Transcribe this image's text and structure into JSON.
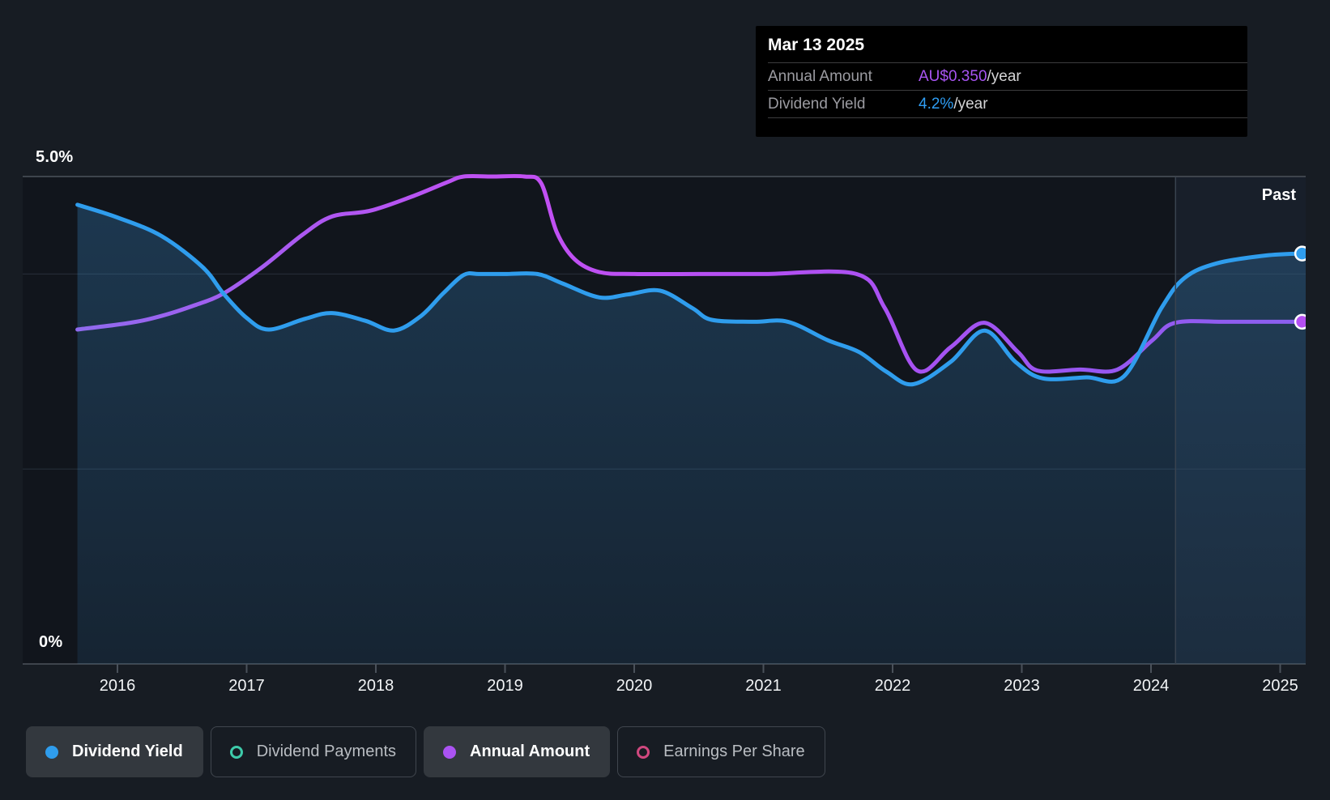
{
  "tooltip": {
    "date": "Mar 13 2025",
    "rows": [
      {
        "label": "Annual Amount",
        "value": "AU$0.350",
        "suffix": "/year",
        "value_color": "#a855f2"
      },
      {
        "label": "Dividend Yield",
        "value": "4.2%",
        "suffix": "/year",
        "value_color": "#2f9df3"
      }
    ]
  },
  "chart": {
    "past_label": "Past",
    "y_axis": {
      "top_label": "5.0%",
      "bottom_label": "0%"
    },
    "x_labels": [
      "2016",
      "2017",
      "2018",
      "2019",
      "2020",
      "2021",
      "2022",
      "2023",
      "2024",
      "2025"
    ]
  },
  "chart_data": {
    "type": "line",
    "title": "Dividend history chart",
    "y_unit": "%",
    "ylim": [
      0,
      5
    ],
    "xlim_years": [
      2015.69,
      2025.2
    ],
    "gridlines_pct": [
      5,
      4,
      2,
      0
    ],
    "past_region_start_year": 2024.19,
    "grid_on": true,
    "series": [
      {
        "name": "Dividend Yield",
        "color": "#2f9ded",
        "fill_area": true,
        "end_dot": true,
        "points": [
          [
            2015.69,
            4.71
          ],
          [
            2016.0,
            4.58
          ],
          [
            2016.34,
            4.39
          ],
          [
            2016.66,
            4.07
          ],
          [
            2016.82,
            3.8
          ],
          [
            2017.0,
            3.55
          ],
          [
            2017.17,
            3.43
          ],
          [
            2017.45,
            3.54
          ],
          [
            2017.66,
            3.6
          ],
          [
            2017.92,
            3.52
          ],
          [
            2018.14,
            3.42
          ],
          [
            2018.35,
            3.57
          ],
          [
            2018.52,
            3.8
          ],
          [
            2018.68,
            3.99
          ],
          [
            2018.8,
            4.0
          ],
          [
            2019.0,
            4.0
          ],
          [
            2019.25,
            4.0
          ],
          [
            2019.45,
            3.9
          ],
          [
            2019.73,
            3.76
          ],
          [
            2019.95,
            3.79
          ],
          [
            2020.2,
            3.83
          ],
          [
            2020.45,
            3.65
          ],
          [
            2020.6,
            3.53
          ],
          [
            2020.92,
            3.51
          ],
          [
            2021.19,
            3.51
          ],
          [
            2021.5,
            3.32
          ],
          [
            2021.74,
            3.2
          ],
          [
            2021.95,
            3.0
          ],
          [
            2022.16,
            2.87
          ],
          [
            2022.45,
            3.1
          ],
          [
            2022.71,
            3.42
          ],
          [
            2022.95,
            3.1
          ],
          [
            2023.16,
            2.93
          ],
          [
            2023.5,
            2.94
          ],
          [
            2023.79,
            2.95
          ],
          [
            2024.08,
            3.65
          ],
          [
            2024.26,
            3.96
          ],
          [
            2024.51,
            4.11
          ],
          [
            2024.89,
            4.19
          ],
          [
            2025.17,
            4.21
          ]
        ]
      },
      {
        "name": "Annual Amount",
        "color": "#b44ff2",
        "fill_area": false,
        "end_dot": true,
        "points": [
          [
            2015.69,
            3.43
          ],
          [
            2016.1,
            3.5
          ],
          [
            2016.34,
            3.57
          ],
          [
            2016.6,
            3.68
          ],
          [
            2016.82,
            3.8
          ],
          [
            2017.12,
            4.07
          ],
          [
            2017.43,
            4.4
          ],
          [
            2017.66,
            4.59
          ],
          [
            2017.96,
            4.65
          ],
          [
            2018.29,
            4.8
          ],
          [
            2018.55,
            4.94
          ],
          [
            2018.68,
            5.0
          ],
          [
            2018.9,
            5.0
          ],
          [
            2019.15,
            5.0
          ],
          [
            2019.28,
            4.93
          ],
          [
            2019.4,
            4.43
          ],
          [
            2019.54,
            4.15
          ],
          [
            2019.73,
            4.02
          ],
          [
            2020.0,
            4.0
          ],
          [
            2020.5,
            4.0
          ],
          [
            2021.0,
            4.0
          ],
          [
            2021.72,
            4.0
          ],
          [
            2021.94,
            3.65
          ],
          [
            2022.19,
            3.01
          ],
          [
            2022.45,
            3.25
          ],
          [
            2022.71,
            3.5
          ],
          [
            2022.97,
            3.2
          ],
          [
            2023.12,
            3.01
          ],
          [
            2023.45,
            3.02
          ],
          [
            2023.74,
            3.02
          ],
          [
            2024.01,
            3.32
          ],
          [
            2024.19,
            3.5
          ],
          [
            2024.6,
            3.51
          ],
          [
            2025.17,
            3.51
          ]
        ]
      }
    ]
  },
  "legend": {
    "items": [
      {
        "label": "Dividend Yield",
        "color": "#2f9ded",
        "marker": "filled",
        "active": true
      },
      {
        "label": "Dividend Payments",
        "color": "#3ecbaa",
        "marker": "ring",
        "active": false
      },
      {
        "label": "Annual Amount",
        "color": "#ab53f2",
        "marker": "filled",
        "active": true
      },
      {
        "label": "Earnings Per Share",
        "color": "#d0487f",
        "marker": "ring",
        "active": false
      }
    ]
  },
  "colors": {
    "page_bg": "#171c23",
    "plot_bg": "#11151c",
    "grid_major": "#3e444c",
    "grid_minor": "#28303a",
    "past_band": "#7fb0e0",
    "tooltip_bg": "#000000"
  }
}
